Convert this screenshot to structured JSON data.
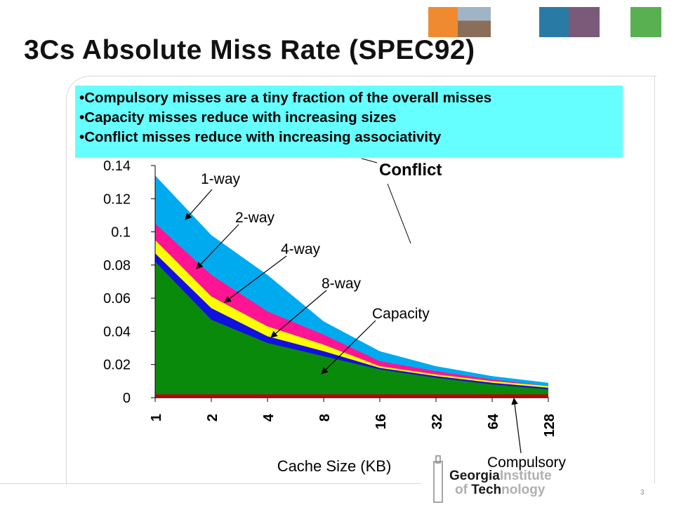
{
  "slide": {
    "title": "3Cs Absolute Miss Rate (SPEC92)",
    "page_number": "3",
    "bullets": [
      "Compulsory misses are a tiny fraction of the overall misses",
      "Capacity misses reduce with increasing sizes",
      "Conflict misses reduce with increasing associativity"
    ],
    "logo": {
      "line1a": "Georgia",
      "line1b": "Institute",
      "line2a": "of ",
      "line2b": "Tech",
      "line2c": "nology"
    }
  },
  "colors": {
    "compulsory": "#c00000",
    "capacity": "#0a8a0a",
    "eight_way": "#1010e0",
    "four_way": "#ffff00",
    "two_way": "#ff1493",
    "one_way": "#00aaee",
    "callout_bg": "#66ffff"
  },
  "chart_data": {
    "type": "area",
    "x": [
      "1",
      "2",
      "4",
      "8",
      "16",
      "32",
      "64",
      "128"
    ],
    "xlabel": "Cache Size (KB)",
    "ylabel": "",
    "ylim": [
      0,
      0.14
    ],
    "yticks": [
      "0",
      "0.02",
      "0.04",
      "0.06",
      "0.08",
      "0.1",
      "0.12",
      "0.14"
    ],
    "grid": false,
    "series": [
      {
        "name": "Compulsory",
        "values": [
          0.002,
          0.002,
          0.002,
          0.002,
          0.002,
          0.002,
          0.002,
          0.002
        ]
      },
      {
        "name": "Capacity",
        "values": [
          0.082,
          0.047,
          0.033,
          0.025,
          0.017,
          0.012,
          0.008,
          0.005
        ]
      },
      {
        "name": "8-way",
        "values": [
          0.087,
          0.054,
          0.037,
          0.028,
          0.018,
          0.013,
          0.009,
          0.006
        ]
      },
      {
        "name": "4-way",
        "values": [
          0.095,
          0.061,
          0.043,
          0.032,
          0.019,
          0.014,
          0.01,
          0.007
        ]
      },
      {
        "name": "2-way",
        "values": [
          0.105,
          0.074,
          0.052,
          0.038,
          0.022,
          0.016,
          0.011,
          0.007
        ]
      },
      {
        "name": "1-way",
        "values": [
          0.134,
          0.098,
          0.074,
          0.046,
          0.028,
          0.019,
          0.013,
          0.009
        ]
      }
    ],
    "annotations": [
      "1-way",
      "2-way",
      "4-way",
      "8-way",
      "Capacity",
      "Conflict",
      "Compulsory"
    ]
  }
}
